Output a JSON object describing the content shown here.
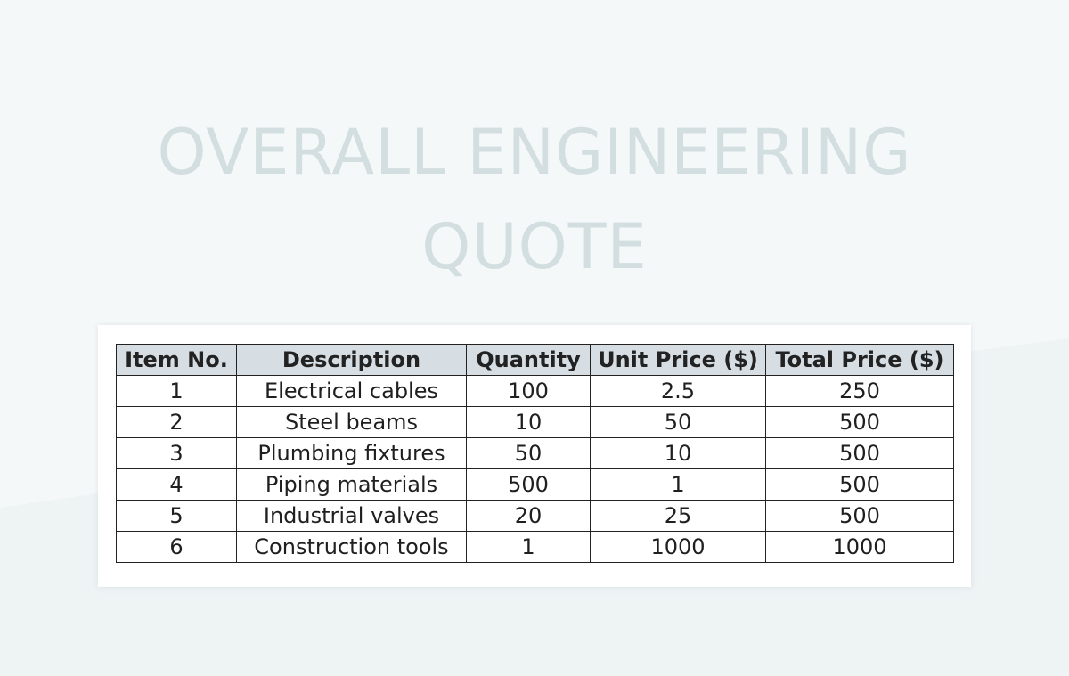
{
  "title": {
    "line1": "OVERALL ENGINEERING",
    "line2": "QUOTE"
  },
  "table": {
    "headers": [
      "Item No.",
      "Description",
      "Quantity",
      "Unit Price ($)",
      "Total Price ($)"
    ],
    "rows": [
      [
        "1",
        "Electrical cables",
        "100",
        "2.5",
        "250"
      ],
      [
        "2",
        "Steel beams",
        "10",
        "50",
        "500"
      ],
      [
        "3",
        "Plumbing fixtures",
        "50",
        "10",
        "500"
      ],
      [
        "4",
        "Piping materials",
        "500",
        "1",
        "500"
      ],
      [
        "5",
        "Industrial valves",
        "20",
        "25",
        "500"
      ],
      [
        "6",
        "Construction tools",
        "1",
        "1000",
        "1000"
      ]
    ]
  },
  "colors": {
    "background": "#f5f8f9",
    "title": "#d2dedf",
    "header_fill": "#d7dee3",
    "border": "#222222"
  }
}
